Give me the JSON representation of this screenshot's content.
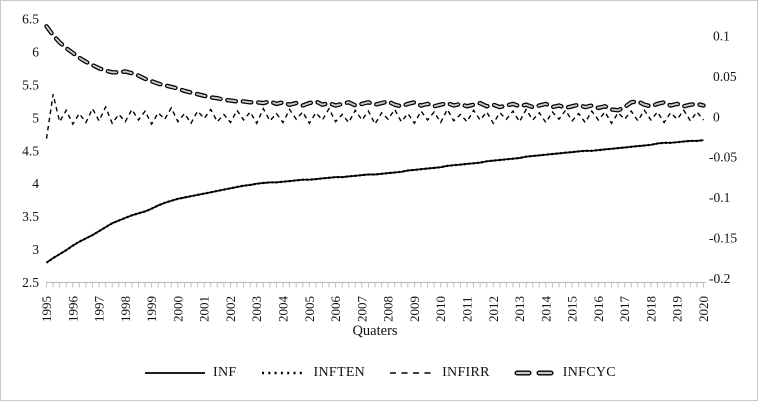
{
  "chart_data": {
    "type": "line",
    "title": "",
    "xlabel": "Quaters",
    "x_start": 1995,
    "x_step": 0.25,
    "x_tick_labels": [
      "1995",
      "1996",
      "1997",
      "1998",
      "1999",
      "2000",
      "2001",
      "2002",
      "2003",
      "2004",
      "2005",
      "2006",
      "2007",
      "2008",
      "2009",
      "2010",
      "2011",
      "2012",
      "2013",
      "2014",
      "2015",
      "2016",
      "2017",
      "2018",
      "2019",
      "2020"
    ],
    "left_axis": {
      "range": [
        2.5,
        6.5
      ],
      "ticks": [
        6.5,
        6,
        5.5,
        5,
        4.5,
        4,
        3.5,
        3,
        2.5
      ],
      "labels": [
        "6.5",
        "6",
        "5.5",
        "5",
        "4.5",
        "4",
        "3.5",
        "3",
        "2.5"
      ]
    },
    "right_axis": {
      "range": [
        -0.205,
        0.121
      ],
      "ticks": [
        0.1,
        0.05,
        0,
        -0.05,
        -0.1,
        -0.15,
        -0.2
      ],
      "labels": [
        "0.1",
        "0.05",
        "0",
        "-0.05",
        "-0.1",
        "-0.15",
        "-0.2"
      ]
    },
    "legend_position": "bottom",
    "grid": false,
    "series": [
      {
        "name": "INF",
        "axis": "left",
        "style": "solid",
        "values": [
          2.8,
          2.87,
          2.93,
          2.99,
          3.06,
          3.12,
          3.17,
          3.22,
          3.28,
          3.34,
          3.4,
          3.44,
          3.48,
          3.52,
          3.55,
          3.58,
          3.62,
          3.67,
          3.71,
          3.74,
          3.77,
          3.79,
          3.81,
          3.83,
          3.85,
          3.87,
          3.89,
          3.91,
          3.93,
          3.95,
          3.97,
          3.98,
          4.0,
          4.01,
          4.02,
          4.02,
          4.03,
          4.04,
          4.05,
          4.06,
          4.06,
          4.07,
          4.08,
          4.09,
          4.1,
          4.1,
          4.11,
          4.12,
          4.13,
          4.14,
          4.14,
          4.15,
          4.16,
          4.17,
          4.18,
          4.2,
          4.21,
          4.22,
          4.23,
          4.24,
          4.25,
          4.27,
          4.28,
          4.29,
          4.3,
          4.31,
          4.32,
          4.34,
          4.35,
          4.36,
          4.37,
          4.38,
          4.39,
          4.41,
          4.42,
          4.43,
          4.44,
          4.45,
          4.46,
          4.47,
          4.48,
          4.49,
          4.5,
          4.5,
          4.51,
          4.52,
          4.53,
          4.54,
          4.55,
          4.56,
          4.57,
          4.58,
          4.59,
          4.61,
          4.62,
          4.62,
          4.63,
          4.64,
          4.65,
          4.65,
          4.66
        ]
      },
      {
        "name": "INFTEN",
        "axis": "left",
        "style": "dotted",
        "values": [
          2.8,
          2.87,
          2.93,
          2.99,
          3.06,
          3.12,
          3.17,
          3.22,
          3.28,
          3.34,
          3.4,
          3.44,
          3.48,
          3.52,
          3.55,
          3.58,
          3.62,
          3.67,
          3.71,
          3.74,
          3.77,
          3.79,
          3.81,
          3.83,
          3.85,
          3.87,
          3.89,
          3.91,
          3.93,
          3.95,
          3.97,
          3.98,
          4.0,
          4.01,
          4.02,
          4.02,
          4.03,
          4.04,
          4.05,
          4.06,
          4.06,
          4.07,
          4.08,
          4.09,
          4.1,
          4.1,
          4.11,
          4.12,
          4.13,
          4.14,
          4.14,
          4.15,
          4.16,
          4.17,
          4.18,
          4.2,
          4.21,
          4.22,
          4.23,
          4.24,
          4.25,
          4.27,
          4.28,
          4.29,
          4.3,
          4.31,
          4.32,
          4.34,
          4.35,
          4.36,
          4.37,
          4.38,
          4.39,
          4.41,
          4.42,
          4.43,
          4.44,
          4.45,
          4.46,
          4.47,
          4.48,
          4.49,
          4.5,
          4.5,
          4.51,
          4.52,
          4.53,
          4.54,
          4.55,
          4.56,
          4.57,
          4.58,
          4.59,
          4.61,
          4.62,
          4.62,
          4.63,
          4.64,
          4.65,
          4.65,
          4.66
        ]
      },
      {
        "name": "INFIRR",
        "axis": "right",
        "style": "dashed",
        "values": [
          -0.027,
          0.028,
          -0.006,
          0.008,
          -0.009,
          0.004,
          -0.007,
          0.01,
          -0.005,
          0.012,
          -0.008,
          0.003,
          -0.006,
          0.009,
          -0.004,
          0.007,
          -0.009,
          0.005,
          -0.003,
          0.011,
          -0.006,
          0.004,
          -0.008,
          0.007,
          -0.002,
          0.009,
          -0.006,
          0.003,
          -0.007,
          0.008,
          -0.004,
          0.006,
          -0.008,
          0.01,
          -0.005,
          0.004,
          -0.007,
          0.009,
          -0.003,
          0.006,
          -0.008,
          0.005,
          -0.004,
          0.01,
          -0.006,
          0.003,
          -0.007,
          0.008,
          -0.004,
          0.007,
          -0.009,
          0.005,
          -0.003,
          0.009,
          -0.006,
          0.004,
          -0.008,
          0.007,
          -0.004,
          0.006,
          -0.007,
          0.009,
          -0.005,
          0.003,
          -0.006,
          0.008,
          -0.004,
          0.006,
          -0.008,
          0.005,
          -0.003,
          0.007,
          -0.006,
          0.009,
          -0.004,
          0.005,
          -0.007,
          0.006,
          -0.003,
          0.008,
          -0.005,
          0.004,
          -0.007,
          0.007,
          -0.004,
          0.006,
          -0.008,
          0.005,
          -0.003,
          0.007,
          -0.005,
          0.008,
          -0.004,
          0.006,
          -0.007,
          0.005,
          -0.003,
          0.008,
          -0.005,
          0.006,
          -0.004
        ]
      },
      {
        "name": "INFCYC",
        "axis": "right",
        "style": "long-dash-thick",
        "values": [
          0.112,
          0.101,
          0.092,
          0.085,
          0.079,
          0.073,
          0.068,
          0.064,
          0.06,
          0.057,
          0.055,
          0.055,
          0.056,
          0.054,
          0.051,
          0.047,
          0.044,
          0.041,
          0.039,
          0.037,
          0.035,
          0.032,
          0.03,
          0.028,
          0.026,
          0.024,
          0.023,
          0.021,
          0.02,
          0.019,
          0.019,
          0.018,
          0.018,
          0.017,
          0.019,
          0.016,
          0.018,
          0.015,
          0.017,
          0.014,
          0.017,
          0.019,
          0.015,
          0.017,
          0.014,
          0.016,
          0.018,
          0.014,
          0.016,
          0.018,
          0.015,
          0.017,
          0.019,
          0.015,
          0.013,
          0.016,
          0.018,
          0.014,
          0.016,
          0.013,
          0.015,
          0.017,
          0.014,
          0.016,
          0.013,
          0.015,
          0.017,
          0.013,
          0.015,
          0.012,
          0.014,
          0.016,
          0.013,
          0.015,
          0.012,
          0.014,
          0.016,
          0.012,
          0.014,
          0.011,
          0.013,
          0.015,
          0.012,
          0.014,
          0.011,
          0.013,
          0.009,
          0.008,
          0.012,
          0.018,
          0.019,
          0.015,
          0.013,
          0.016,
          0.018,
          0.014,
          0.016,
          0.013,
          0.015,
          0.016,
          0.014
        ]
      }
    ],
    "colors": {
      "line": "#000000",
      "axis": "#bfbfbf",
      "cyc_inner": "#c9c9c9",
      "frame_border": "#c9c9c9",
      "text": "#111111"
    }
  },
  "legend": {
    "items": [
      {
        "label": "INF"
      },
      {
        "label": "INFTEN"
      },
      {
        "label": "INFIRR"
      },
      {
        "label": "INFCYC"
      }
    ]
  }
}
